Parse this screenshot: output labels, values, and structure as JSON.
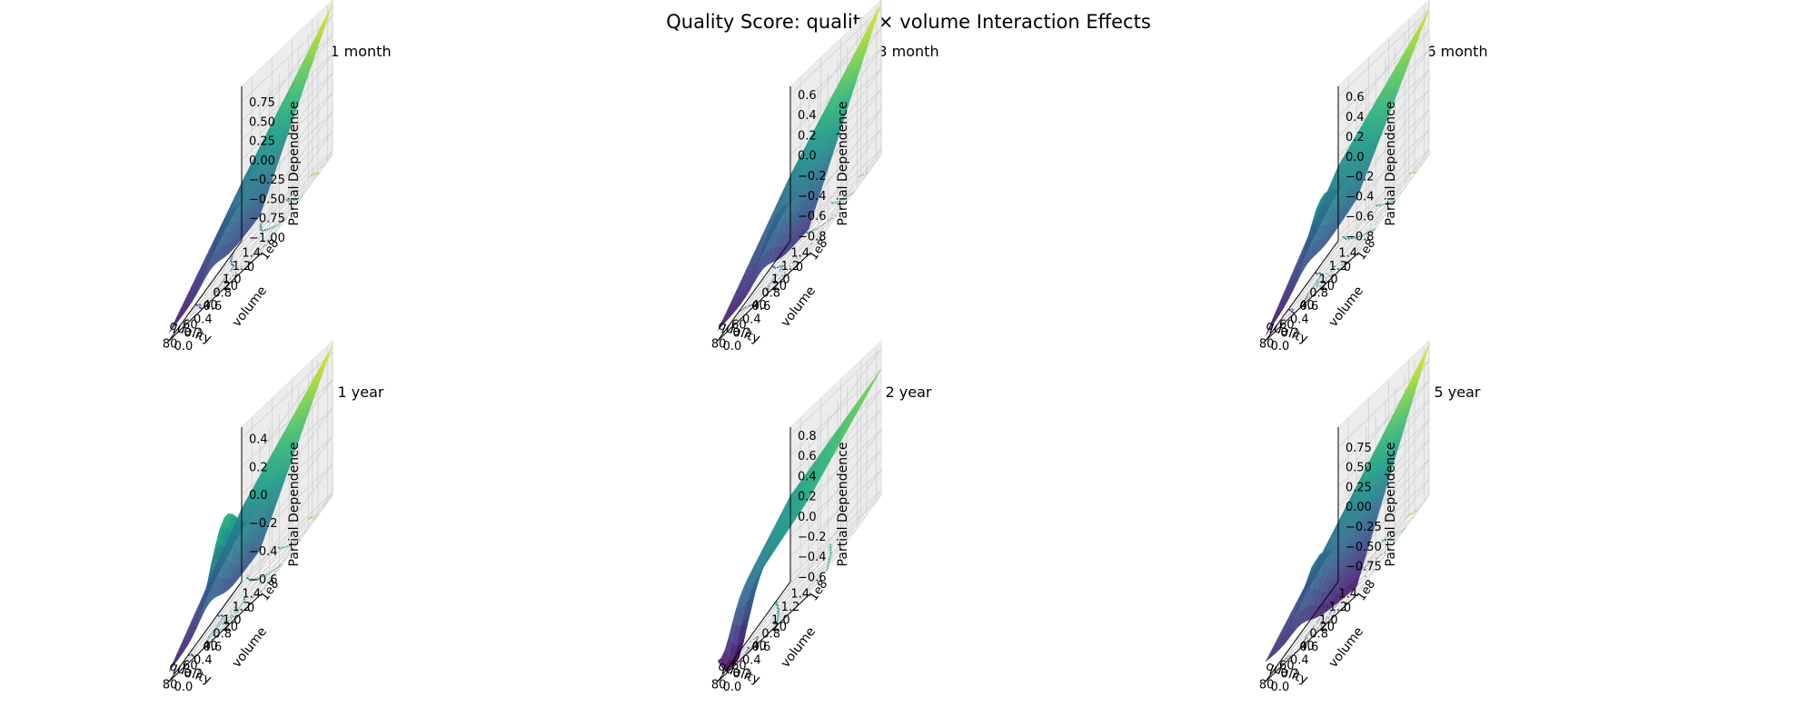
{
  "figure": {
    "suptitle": "Quality Score: quality × volume Interaction Effects"
  },
  "colormap": "viridis",
  "chart_data": [
    {
      "type": "surface",
      "title": "1 month",
      "xlabel": "quality",
      "ylabel": "volume",
      "zlabel": "Partial Dependence",
      "y_offset_label": "1e8",
      "x_range": [
        0,
        90
      ],
      "y_range": [
        0,
        1.5
      ],
      "z_range": [
        -1.05,
        0.95
      ],
      "x_ticks": [
        "0",
        "20",
        "40",
        "60",
        "80"
      ],
      "y_ticks": [
        "0.0",
        "0.2",
        "0.4",
        "0.6",
        "0.8",
        "1.0",
        "1.2",
        "1.4"
      ],
      "z_ticks": [
        "0.75",
        "0.50",
        "0.25",
        "0.00",
        "−0.25",
        "−0.50",
        "−0.75",
        "−1.00"
      ],
      "z_tick_values": [
        0.75,
        0.5,
        0.25,
        0,
        -0.25,
        -0.5,
        -0.75,
        -1.0
      ],
      "corner_values": {
        "x0y0": -0.55,
        "xmaxy0": -0.95,
        "x0ymax": 0.9,
        "xmaxymax": -0.3
      },
      "bump": {
        "x": 48,
        "y": 0.25,
        "height": 0.35
      }
    },
    {
      "type": "surface",
      "title": "3 month",
      "xlabel": "quality",
      "ylabel": "volume",
      "zlabel": "Partial Dependence",
      "y_offset_label": "1e8",
      "x_range": [
        0,
        90
      ],
      "y_range": [
        0,
        1.5
      ],
      "z_range": [
        -0.85,
        0.68
      ],
      "x_ticks": [
        "0",
        "20",
        "40",
        "60",
        "80"
      ],
      "y_ticks": [
        "0.0",
        "0.2",
        "0.4",
        "0.6",
        "0.8",
        "1.0",
        "1.2",
        "1.4"
      ],
      "z_ticks": [
        "0.6",
        "0.4",
        "0.2",
        "0.0",
        "−0.2",
        "−0.4",
        "−0.6",
        "−0.8"
      ],
      "z_tick_values": [
        0.6,
        0.4,
        0.2,
        0,
        -0.2,
        -0.4,
        -0.6,
        -0.8
      ],
      "corner_values": {
        "x0y0": -0.6,
        "xmaxy0": -0.75,
        "x0ymax": 0.65,
        "xmaxymax": -0.2
      },
      "bump": {
        "x": 45,
        "y": 0.25,
        "height": 0.3
      }
    },
    {
      "type": "surface",
      "title": "6 month",
      "xlabel": "quality",
      "ylabel": "volume",
      "zlabel": "Partial Dependence",
      "y_offset_label": "1e8",
      "x_range": [
        0,
        90
      ],
      "y_range": [
        0,
        1.5
      ],
      "z_range": [
        -0.85,
        0.7
      ],
      "x_ticks": [
        "0",
        "20",
        "40",
        "60",
        "80"
      ],
      "y_ticks": [
        "0.0",
        "0.2",
        "0.4",
        "0.6",
        "0.8",
        "1.0",
        "1.2",
        "1.4"
      ],
      "z_ticks": [
        "0.6",
        "0.4",
        "0.2",
        "0.0",
        "−0.2",
        "−0.4",
        "−0.6",
        "−0.8"
      ],
      "z_tick_values": [
        0.6,
        0.4,
        0.2,
        0,
        -0.2,
        -0.4,
        -0.6,
        -0.8
      ],
      "corner_values": {
        "x0y0": -0.3,
        "xmaxy0": -0.8,
        "x0ymax": 0.6,
        "xmaxymax": -0.1
      },
      "bump": {
        "x": 50,
        "y": 0.3,
        "height": 0.4
      }
    },
    {
      "type": "surface",
      "title": "1 year",
      "xlabel": "quality",
      "ylabel": "volume",
      "zlabel": "Partial Dependence",
      "y_offset_label": "1e8",
      "x_range": [
        0,
        90
      ],
      "y_range": [
        0,
        1.5
      ],
      "z_range": [
        -0.62,
        0.48
      ],
      "x_ticks": [
        "0",
        "20",
        "40",
        "60",
        "80"
      ],
      "y_ticks": [
        "0.0",
        "0.2",
        "0.4",
        "0.6",
        "0.8",
        "1.0",
        "1.2",
        "1.4"
      ],
      "z_ticks": [
        "0.4",
        "0.2",
        "0.0",
        "−0.2",
        "−0.4",
        "−0.6"
      ],
      "z_tick_values": [
        0.4,
        0.2,
        0,
        -0.2,
        -0.4,
        -0.6
      ],
      "corner_values": {
        "x0y0": -0.3,
        "xmaxy0": -0.55,
        "x0ymax": 0.45,
        "xmaxymax": -0.1
      },
      "bump": {
        "x": 50,
        "y": 0.3,
        "height": 0.45
      }
    },
    {
      "type": "surface",
      "title": "2 year",
      "xlabel": "quality",
      "ylabel": "volume",
      "zlabel": "Partial Dependence",
      "y_offset_label": "1e8",
      "x_range": [
        0,
        90
      ],
      "y_range": [
        0,
        1.5
      ],
      "z_range": [
        -0.65,
        0.88
      ],
      "x_ticks": [
        "20",
        "40",
        "60",
        "80"
      ],
      "y_ticks": [
        "0.0",
        "0.2",
        "0.4",
        "0.6",
        "0.8",
        "1.0",
        "1.2",
        "1.4"
      ],
      "z_ticks": [
        "0.8",
        "0.6",
        "0.4",
        "0.2",
        "0.0",
        "−0.2",
        "−0.4",
        "−0.6"
      ],
      "z_tick_values": [
        0.8,
        0.6,
        0.4,
        0.2,
        0,
        -0.2,
        -0.4,
        -0.6
      ],
      "corner_values": {
        "x0y0": 0.3,
        "xmaxy0": -0.2,
        "x0ymax": 0.6,
        "xmaxymax": 0.2
      },
      "bump": {
        "x": 78,
        "y": 0.1,
        "height": -0.6
      }
    },
    {
      "type": "surface",
      "title": "5 year",
      "xlabel": "quality",
      "ylabel": "volume",
      "zlabel": "Partial Dependence",
      "y_offset_label": "1e8",
      "x_range": [
        0,
        90
      ],
      "y_range": [
        0,
        1.5
      ],
      "z_range": [
        -0.95,
        1.0
      ],
      "x_ticks": [
        "0",
        "20",
        "40",
        "60",
        "80"
      ],
      "y_ticks": [
        "0.0",
        "0.2",
        "0.4",
        "0.6",
        "0.8",
        "1.0",
        "1.2",
        "1.4"
      ],
      "z_ticks": [
        "0.75",
        "0.50",
        "0.25",
        "0.00",
        "−0.25",
        "−0.50",
        "−0.75"
      ],
      "z_tick_values": [
        0.75,
        0.5,
        0.25,
        0,
        -0.25,
        -0.5,
        -0.75
      ],
      "corner_values": {
        "x0y0": -0.85,
        "xmaxy0": -0.7,
        "x0ymax": 0.95,
        "xmaxymax": -0.2
      },
      "bump": {
        "x": 55,
        "y": 0.3,
        "height": 0.45
      }
    }
  ]
}
